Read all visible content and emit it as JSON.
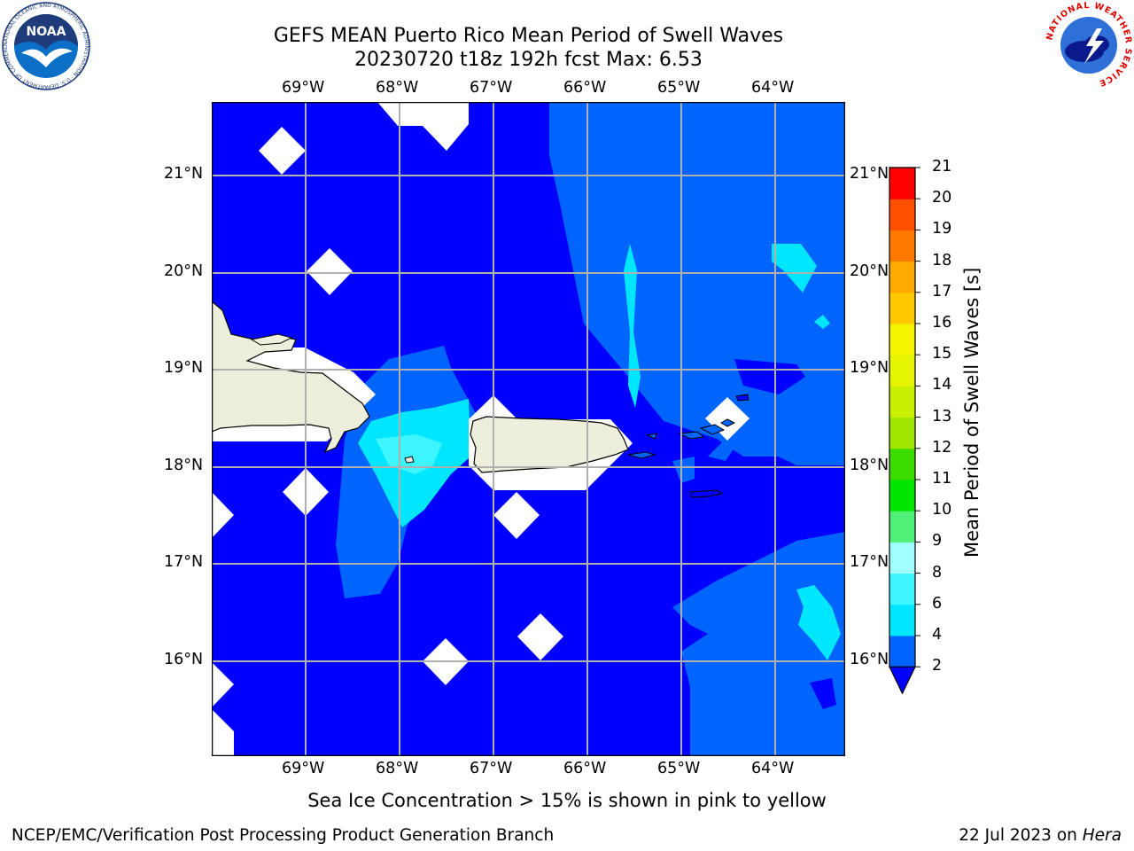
{
  "title_line1": "GEFS MEAN Puerto Rico Mean Period of Swell Waves",
  "title_line2": "20230720 t18z 192h fcst   Max: 6.53",
  "lon_ticks": [
    "69°W",
    "68°W",
    "67°W",
    "66°W",
    "65°W",
    "64°W"
  ],
  "lat_ticks": [
    "21°N",
    "20°N",
    "19°N",
    "18°N",
    "17°N",
    "16°N"
  ],
  "colorbar": {
    "title": "Mean Period of Swell Waves [s]",
    "levels": [
      "2",
      "4",
      "6",
      "8",
      "9",
      "10",
      "11",
      "12",
      "13",
      "14",
      "15",
      "16",
      "17",
      "18",
      "19",
      "20",
      "21"
    ],
    "colors": [
      "#0064ff",
      "#00e6ff",
      "#3cf5ff",
      "#a0ffff",
      "#50f078",
      "#00e600",
      "#3cdc00",
      "#a0e600",
      "#c8f000",
      "#e6f500",
      "#f5f500",
      "#ffc800",
      "#ffaa00",
      "#ff7800",
      "#ff5000",
      "#ff0000"
    ],
    "extend_color": "#0000ff"
  },
  "subtitle": "Sea Ice Concentration > 15% is shown in pink to yellow",
  "footer_left": "NCEP/EMC/Verification Post Processing Product Generation Branch",
  "footer_right_date": "22 Jul 2023 on ",
  "footer_right_host": "Hera",
  "noaa_logo_text": "NOAA",
  "noaa_ring_text": "NATIONAL OCEANIC AND ATMOSPHERIC ADMINISTRATION · U.S. DEPARTMENT OF COMMERCE",
  "nws_ring_text": "NATIONAL WEATHER SERVICE",
  "map_colors": {
    "deep": "#0000ff",
    "mid": "#0064ff",
    "light": "#00e6ff",
    "lighter": "#3cf5ff",
    "land": "#eeeedc",
    "missing": "#ffffff"
  }
}
